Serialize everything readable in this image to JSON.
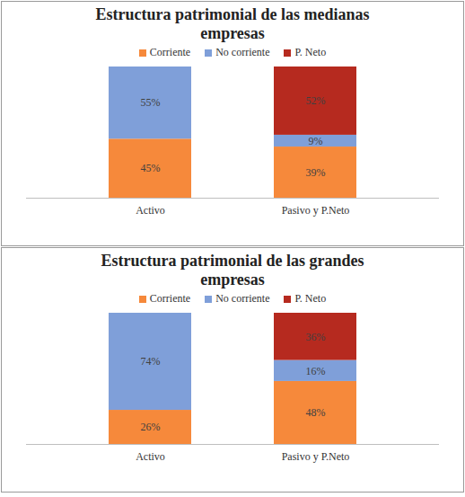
{
  "chart_data": [
    {
      "type": "bar",
      "stacked": true,
      "data_labels": true,
      "tick_labels": "x",
      "title": "Estructura patrimonial de las medianas empresas",
      "categories": [
        "Activo",
        "Pasivo y P.Neto"
      ],
      "ylim": [
        0,
        100
      ],
      "series": [
        {
          "name": "Corriente",
          "color": "#F6893B",
          "values": [
            45,
            39
          ],
          "value_labels": [
            "45%",
            "39%"
          ]
        },
        {
          "name": "No corriente",
          "color": "#7F9FD9",
          "values": [
            55,
            9
          ],
          "value_labels": [
            "55%",
            "9%"
          ]
        },
        {
          "name": "P. Neto",
          "color": "#B62A1F",
          "values": [
            null,
            52
          ],
          "value_labels": [
            null,
            "52%"
          ]
        }
      ]
    },
    {
      "type": "bar",
      "stacked": true,
      "data_labels": true,
      "tick_labels": "x",
      "title": "Estructura patrimonial de las grandes empresas",
      "categories": [
        "Activo",
        "Pasivo y P.Neto"
      ],
      "ylim": [
        0,
        100
      ],
      "series": [
        {
          "name": "Corriente",
          "color": "#F6893B",
          "values": [
            26,
            48
          ],
          "value_labels": [
            "26%",
            "48%"
          ]
        },
        {
          "name": "No corriente",
          "color": "#7F9FD9",
          "values": [
            74,
            16
          ],
          "value_labels": [
            "74%",
            "16%"
          ]
        },
        {
          "name": "P. Neto",
          "color": "#B62A1F",
          "values": [
            null,
            36
          ],
          "value_labels": [
            null,
            "36%"
          ]
        }
      ]
    }
  ]
}
